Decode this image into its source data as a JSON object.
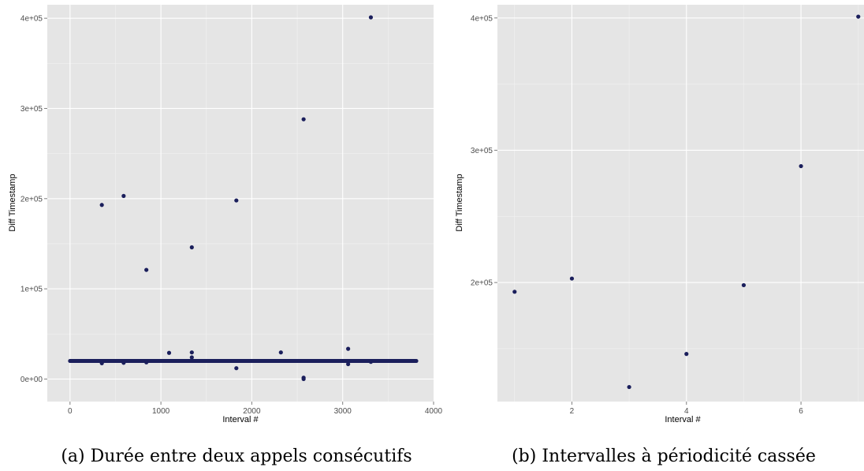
{
  "colors": {
    "panel": "#e5e5e5",
    "grid": "#ffffff",
    "point": "#1b1f5c",
    "tick": "#4d4d4d"
  },
  "chart_data": [
    {
      "type": "scatter",
      "caption": "(a) Durée entre deux appels consécutifs",
      "xlabel": "Interval #",
      "ylabel": "Diff Timestamp",
      "xlim": [
        -250,
        4000
      ],
      "ylim": [
        -25000,
        415000
      ],
      "x_ticks": [
        0,
        1000,
        2000,
        3000,
        4000
      ],
      "x_tick_labels": [
        "0",
        "1000",
        "2000",
        "3000",
        "4000"
      ],
      "y_ticks": [
        0,
        100000,
        200000,
        300000,
        400000
      ],
      "y_tick_labels": [
        "0e+00",
        "1e+05",
        "2e+05",
        "3e+05",
        "4e+05"
      ],
      "grid": true,
      "baseline": {
        "x_range": [
          0,
          3810
        ],
        "y": 20000
      },
      "points": [
        {
          "x": 350,
          "y": 193000
        },
        {
          "x": 350,
          "y": 17500
        },
        {
          "x": 590,
          "y": 203000
        },
        {
          "x": 590,
          "y": 18000
        },
        {
          "x": 840,
          "y": 121000
        },
        {
          "x": 840,
          "y": 18500
        },
        {
          "x": 1090,
          "y": 29000
        },
        {
          "x": 1340,
          "y": 146000
        },
        {
          "x": 1340,
          "y": 29500
        },
        {
          "x": 1340,
          "y": 24000
        },
        {
          "x": 1830,
          "y": 198000
        },
        {
          "x": 1830,
          "y": 12000
        },
        {
          "x": 2320,
          "y": 29500
        },
        {
          "x": 2570,
          "y": 288000
        },
        {
          "x": 2570,
          "y": 1500
        },
        {
          "x": 2570,
          "y": 0
        },
        {
          "x": 3060,
          "y": 33500
        },
        {
          "x": 3060,
          "y": 16500
        },
        {
          "x": 3310,
          "y": 401000
        },
        {
          "x": 3310,
          "y": 19000
        }
      ]
    },
    {
      "type": "scatter",
      "caption": "(b) Intervalles à périodicité cassée",
      "xlabel": "Interval #",
      "ylabel": "Diff Timestamp",
      "xlim": [
        0.7,
        7.1
      ],
      "ylim": [
        110000,
        410000
      ],
      "x_ticks": [
        2,
        4,
        6
      ],
      "x_tick_labels": [
        "2",
        "4",
        "6"
      ],
      "y_ticks": [
        200000,
        300000,
        400000
      ],
      "y_tick_labels": [
        "2e+05",
        "3e+05",
        "4e+05"
      ],
      "grid": true,
      "points": [
        {
          "x": 1,
          "y": 193000
        },
        {
          "x": 2,
          "y": 203000
        },
        {
          "x": 3,
          "y": 121000
        },
        {
          "x": 4,
          "y": 146000
        },
        {
          "x": 5,
          "y": 198000
        },
        {
          "x": 6,
          "y": 288000
        },
        {
          "x": 7,
          "y": 401000
        }
      ]
    }
  ]
}
